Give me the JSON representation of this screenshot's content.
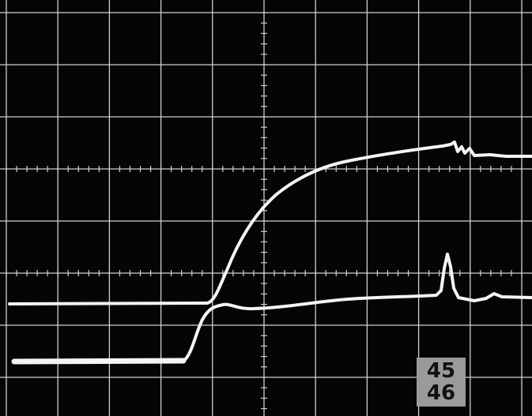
{
  "readout": {
    "top": "45",
    "bottom": "46"
  }
}
